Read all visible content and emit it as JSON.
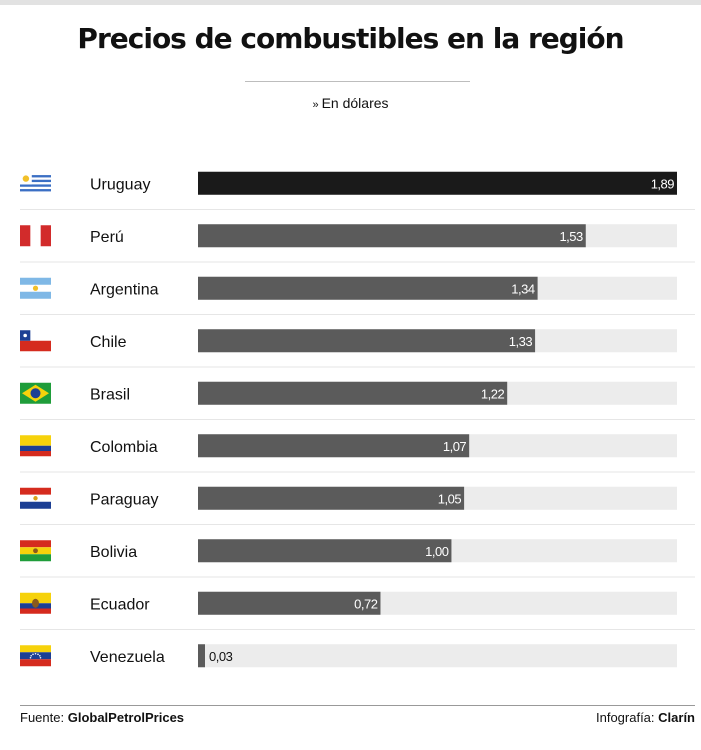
{
  "header": {
    "title": "Precios de combustibles en la región",
    "subtitle_marker": "»",
    "subtitle": "En dólares"
  },
  "footer": {
    "source_label": "Fuente:",
    "source_name": "GlobalPetrolPrices",
    "credit_label": "Infografía:",
    "credit_name": "Clarín"
  },
  "colors": {
    "highlight_bar": "#1a1a1a",
    "bar": "#5b5b5b",
    "track": "#ececec",
    "row_divider": "#e6e6e6"
  },
  "chart_data": {
    "type": "bar",
    "orientation": "horizontal",
    "categories": [
      "Uruguay",
      "Perú",
      "Argentina",
      "Chile",
      "Brasil",
      "Colombia",
      "Paraguay",
      "Bolivia",
      "Ecuador",
      "Venezuela"
    ],
    "values": [
      1.89,
      1.53,
      1.34,
      1.33,
      1.22,
      1.07,
      1.05,
      1.0,
      0.72,
      0.03
    ],
    "value_labels": [
      "1,89",
      "1,53",
      "1,34",
      "1,33",
      "1,22",
      "1,07",
      "1,05",
      "1,00",
      "0,72",
      "0,03"
    ],
    "flags": [
      "uruguay-flag-icon",
      "peru-flag-icon",
      "argentina-flag-icon",
      "chile-flag-icon",
      "brazil-flag-icon",
      "colombia-flag-icon",
      "paraguay-flag-icon",
      "bolivia-flag-icon",
      "ecuador-flag-icon",
      "venezuela-flag-icon"
    ],
    "highlighted_category": "Uruguay",
    "xlim": [
      0,
      1.89
    ],
    "grid": false,
    "title": "Precios de combustibles en la región",
    "subtitle": "En dólares"
  }
}
